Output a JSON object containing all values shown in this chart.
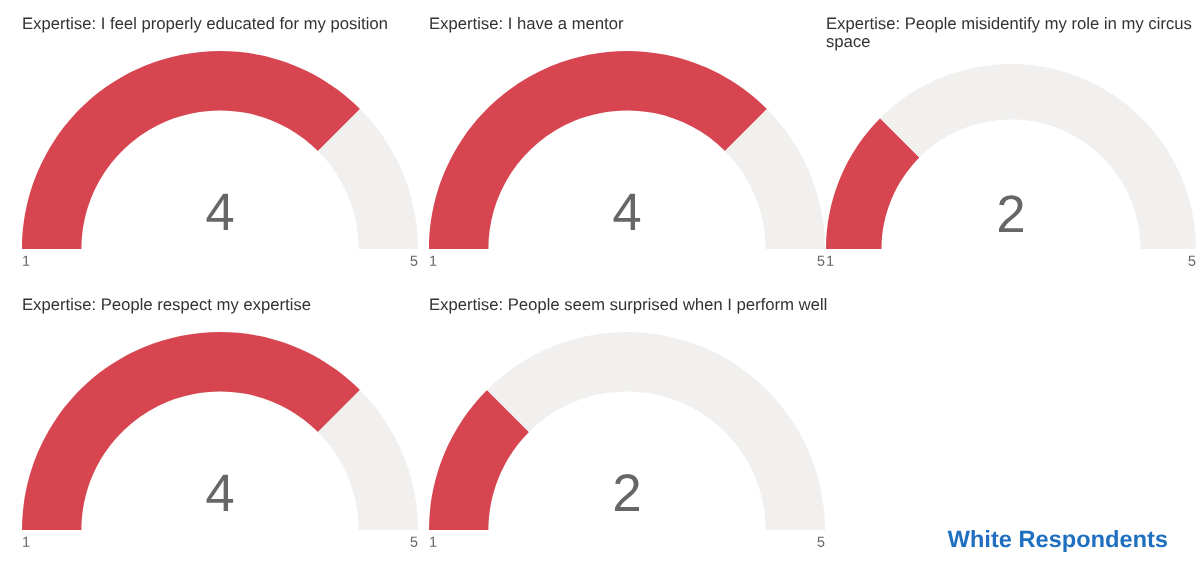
{
  "chart_data": [
    {
      "type": "donut",
      "title": "Expertise: I feel properly educated for my position",
      "categories": [
        null,
        null
      ],
      "values": [
        75,
        25
      ],
      "colors": [
        "#d64550",
        "#f1f0ef"
      ],
      "annotations": [
        "4",
        "1",
        "5"
      ]
    },
    {
      "type": "donut",
      "title": "Expertise: I have a mentor",
      "categories": [
        null,
        null
      ],
      "values": [
        75,
        25
      ],
      "colors": [
        "#d64550",
        "#f1f0ef"
      ],
      "annotations": [
        "4",
        "1",
        "5"
      ]
    },
    {
      "type": "donut",
      "title": "Expertise: People misidentify my role in my circus space",
      "categories": [
        null,
        null
      ],
      "values": [
        25,
        75
      ],
      "colors": [
        "#d64550",
        "#f1f0ef"
      ],
      "annotations": [
        "2",
        "1",
        "5"
      ]
    },
    {
      "type": "donut",
      "title": "Expertise: People respect my expertise",
      "categories": [
        null,
        null
      ],
      "values": [
        75,
        25
      ],
      "colors": [
        "#d64550",
        "#f1f0ef"
      ],
      "annotations": [
        "4",
        "1",
        "5"
      ]
    },
    {
      "type": "donut",
      "title": "Expertise: People seem surprised when I perform well",
      "categories": [
        null,
        null
      ],
      "values": [
        25,
        75
      ],
      "colors": [
        "#d64550",
        "#f1f0ef"
      ],
      "annotations": [
        "2",
        "1",
        "5"
      ]
    },
    {
      "type": "other",
      "annotations": [
        "White Respondents"
      ]
    }
  ]
}
